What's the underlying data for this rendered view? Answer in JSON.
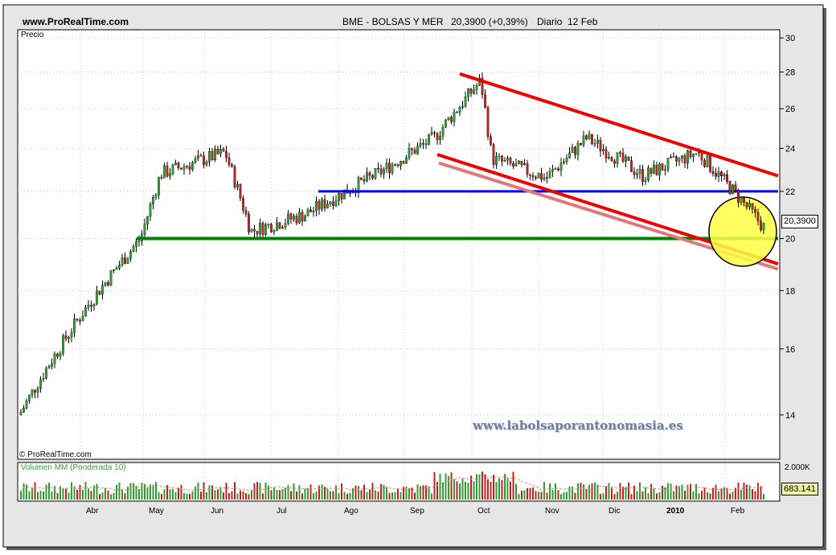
{
  "header": {
    "site": "www.ProRealTime.com",
    "instrument": "BME - BOLSAS Y MER",
    "price": "20,3900 (+0,39%)",
    "period": "Diario  12 Feb"
  },
  "watermark": "www.labolsaporantonomasia.es",
  "price_badge": "20,3900",
  "volume_badge": "683.141",
  "copyright": "© ProRealTime.com",
  "colors": {
    "up": "#2e9e2e",
    "down": "#c02020",
    "resistance_red": "#ee0000",
    "channel_pink": "#e07878",
    "support_blue": "#0000ff",
    "support_green": "#008000",
    "highlight_circle": "#ffff44"
  },
  "chart_data": [
    {
      "type": "line",
      "subtype": "candlestick",
      "title": "BME - BOLSAS Y MER",
      "ylabel": "Precio",
      "y_scale": "log",
      "ylim": [
        12.8,
        30.5
      ],
      "y_ticks": [
        14,
        16,
        18,
        20,
        22,
        24,
        26,
        28,
        30
      ],
      "x_ticks": [
        "Abr",
        "May",
        "Jun",
        "Jul",
        "Ago",
        "Sep",
        "Oct",
        "Nov",
        "Dic",
        "2010",
        "Feb"
      ],
      "grid": true,
      "series": [
        {
          "points": [
            {
              "month": "Mar 2009",
              "close": 14.0
            },
            {
              "month": "Abr 2009",
              "close": 17.5
            },
            {
              "month": "May 2009",
              "close": 20.0
            },
            {
              "month": "May 2009",
              "close": 22.8
            },
            {
              "month": "Jun 2009",
              "close": 23.8
            },
            {
              "month": "Jul 2009",
              "close": 20.3
            },
            {
              "month": "Jul 2009",
              "close": 21.0
            },
            {
              "month": "Ago 2009",
              "close": 22.8
            },
            {
              "month": "Sep 2009",
              "close": 24.5
            },
            {
              "month": "Sep 2009",
              "close": 27.5
            },
            {
              "month": "Oct 2009",
              "close": 23.5
            },
            {
              "month": "Nov 2009",
              "close": 22.6
            },
            {
              "month": "Nov 2009",
              "close": 24.5
            },
            {
              "month": "Dic 2009",
              "close": 22.7
            },
            {
              "month": "Ene 2010",
              "close": 23.8
            },
            {
              "month": "Feb 2010",
              "close": 20.39
            }
          ]
        }
      ],
      "annotations": [
        {
          "type": "horizontal-support",
          "color": "blue",
          "value": 22.0
        },
        {
          "type": "horizontal-support",
          "color": "green",
          "value": 20.0
        },
        {
          "type": "downtrend-resistance",
          "color": "red",
          "from": 27.9,
          "to": 22.7
        },
        {
          "type": "downtrend-support",
          "color": "red",
          "from": 23.7,
          "to": 19.0
        },
        {
          "type": "downtrend-support",
          "color": "pink",
          "from": 23.3,
          "to": 18.8
        },
        {
          "type": "highlight-circle",
          "color": "yellow",
          "around": "Feb 2010"
        }
      ]
    },
    {
      "type": "bar",
      "title": "Volumen MM (Ponderada 10)",
      "y_ticks": [
        "2.000K"
      ],
      "last_value": 683141
    }
  ]
}
